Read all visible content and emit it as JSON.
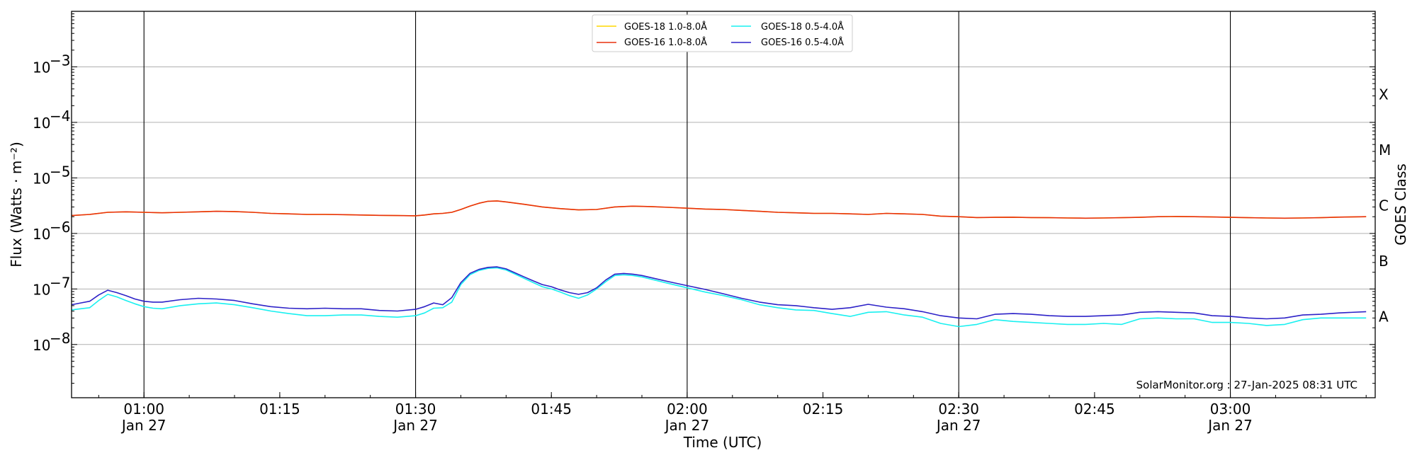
{
  "chart_data": {
    "type": "line",
    "xlabel": "Time (UTC)",
    "ylabel": "Flux (Watts · m⁻²)",
    "right_label": "GOES Class",
    "scale_y": "log",
    "ylim": [
      1.1e-09,
      0.01
    ],
    "x_range_minutes": [
      0.0,
      144.0
    ],
    "x_ticks": [
      {
        "value": 8,
        "time": "01:00",
        "date": "Jan 27"
      },
      {
        "value": 23,
        "time": "01:15",
        "date": ""
      },
      {
        "value": 38,
        "time": "01:30",
        "date": "Jan 27"
      },
      {
        "value": 53,
        "time": "01:45",
        "date": ""
      },
      {
        "value": 68,
        "time": "02:00",
        "date": "Jan 27"
      },
      {
        "value": 83,
        "time": "02:15",
        "date": ""
      },
      {
        "value": 98,
        "time": "02:30",
        "date": "Jan 27"
      },
      {
        "value": 113,
        "time": "02:45",
        "date": ""
      },
      {
        "value": 128,
        "time": "03:00",
        "date": "Jan 27"
      }
    ],
    "y_ticks": [
      {
        "value": 1e-08,
        "base": "10",
        "exp": "−8"
      },
      {
        "value": 1e-07,
        "base": "10",
        "exp": "−7"
      },
      {
        "value": 1e-06,
        "base": "10",
        "exp": "−6"
      },
      {
        "value": 1e-05,
        "base": "10",
        "exp": "−5"
      },
      {
        "value": 0.0001,
        "base": "10",
        "exp": "−4"
      },
      {
        "value": 0.001,
        "base": "10",
        "exp": "−3"
      }
    ],
    "goes_classes": [
      {
        "label": "A",
        "value": 3.16e-08
      },
      {
        "label": "B",
        "value": 3.16e-07
      },
      {
        "label": "C",
        "value": 3.16e-06
      },
      {
        "label": "M",
        "value": 3.16e-05
      },
      {
        "label": "X",
        "value": 0.000316
      }
    ],
    "vertical_lines": [
      8,
      38,
      68,
      98,
      128
    ],
    "grid": "horizontal at decades",
    "legend": {
      "position": "top-center",
      "entries": [
        {
          "label": "GOES-18 1.0-8.0Å",
          "color": "#ffd700"
        },
        {
          "label": "GOES-16 1.0-8.0Å",
          "color": "#e8300f"
        },
        {
          "label": "GOES-18 0.5-4.0Å",
          "color": "#19f0f0"
        },
        {
          "label": "GOES-16 0.5-4.0Å",
          "color": "#2d22c8"
        }
      ]
    },
    "series": [
      {
        "name": "GOES-18 1.0-8.0Å",
        "color": "#ffd700",
        "x": [
          0,
          2,
          4,
          6,
          8,
          10,
          12,
          14,
          16,
          18,
          20,
          22,
          24,
          26,
          28,
          30,
          32,
          34,
          36,
          38,
          39,
          40,
          41,
          42,
          43,
          44,
          45,
          46,
          47,
          48,
          50,
          52,
          54,
          56,
          58,
          60,
          62,
          64,
          66,
          68,
          70,
          72,
          74,
          76,
          78,
          80,
          82,
          84,
          86,
          88,
          90,
          92,
          94,
          96,
          98,
          100,
          102,
          104,
          106,
          108,
          110,
          112,
          114,
          116,
          118,
          120,
          122,
          124,
          126,
          128,
          130,
          132,
          134,
          136,
          138,
          140,
          143
        ],
        "y": [
          2.1e-06,
          2.2e-06,
          2.4e-06,
          2.45e-06,
          2.4e-06,
          2.35e-06,
          2.4e-06,
          2.45e-06,
          2.5e-06,
          2.48e-06,
          2.4e-06,
          2.3e-06,
          2.25e-06,
          2.2e-06,
          2.2e-06,
          2.18e-06,
          2.15e-06,
          2.12e-06,
          2.1e-06,
          2.08e-06,
          2.15e-06,
          2.25e-06,
          2.3e-06,
          2.4e-06,
          2.7e-06,
          3.1e-06,
          3.5e-06,
          3.8e-06,
          3.85e-06,
          3.7e-06,
          3.35e-06,
          3e-06,
          2.8e-06,
          2.65e-06,
          2.7e-06,
          3e-06,
          3.1e-06,
          3.05e-06,
          2.95e-06,
          2.85e-06,
          2.75e-06,
          2.7e-06,
          2.6e-06,
          2.5e-06,
          2.4e-06,
          2.35e-06,
          2.3e-06,
          2.3e-06,
          2.25e-06,
          2.2e-06,
          2.3e-06,
          2.25e-06,
          2.2e-06,
          2.05e-06,
          2e-06,
          1.93e-06,
          1.95e-06,
          1.96e-06,
          1.93e-06,
          1.92e-06,
          1.9e-06,
          1.88e-06,
          1.9e-06,
          1.92e-06,
          1.95e-06,
          2e-06,
          2.02e-06,
          2e-06,
          1.98e-06,
          1.95e-06,
          1.92e-06,
          1.9e-06,
          1.88e-06,
          1.9e-06,
          1.92e-06,
          1.97e-06,
          2e-06
        ]
      },
      {
        "name": "GOES-16 1.0-8.0Å",
        "color": "#e8300f",
        "x": [
          0,
          2,
          4,
          6,
          8,
          10,
          12,
          14,
          16,
          18,
          20,
          22,
          24,
          26,
          28,
          30,
          32,
          34,
          36,
          38,
          39,
          40,
          41,
          42,
          43,
          44,
          45,
          46,
          47,
          48,
          50,
          52,
          54,
          56,
          58,
          60,
          62,
          64,
          66,
          68,
          70,
          72,
          74,
          76,
          78,
          80,
          82,
          84,
          86,
          88,
          90,
          92,
          94,
          96,
          98,
          100,
          102,
          104,
          106,
          108,
          110,
          112,
          114,
          116,
          118,
          120,
          122,
          124,
          126,
          128,
          130,
          132,
          134,
          136,
          138,
          140,
          143
        ],
        "y": [
          2.1e-06,
          2.2e-06,
          2.4e-06,
          2.45e-06,
          2.4e-06,
          2.35e-06,
          2.4e-06,
          2.45e-06,
          2.5e-06,
          2.48e-06,
          2.4e-06,
          2.3e-06,
          2.25e-06,
          2.2e-06,
          2.2e-06,
          2.18e-06,
          2.15e-06,
          2.12e-06,
          2.1e-06,
          2.08e-06,
          2.15e-06,
          2.25e-06,
          2.3e-06,
          2.4e-06,
          2.7e-06,
          3.1e-06,
          3.5e-06,
          3.8e-06,
          3.85e-06,
          3.7e-06,
          3.35e-06,
          3e-06,
          2.8e-06,
          2.65e-06,
          2.7e-06,
          3e-06,
          3.1e-06,
          3.05e-06,
          2.95e-06,
          2.85e-06,
          2.75e-06,
          2.7e-06,
          2.6e-06,
          2.5e-06,
          2.4e-06,
          2.35e-06,
          2.3e-06,
          2.3e-06,
          2.25e-06,
          2.2e-06,
          2.3e-06,
          2.25e-06,
          2.2e-06,
          2.05e-06,
          2e-06,
          1.93e-06,
          1.95e-06,
          1.96e-06,
          1.93e-06,
          1.92e-06,
          1.9e-06,
          1.88e-06,
          1.9e-06,
          1.92e-06,
          1.95e-06,
          2e-06,
          2.02e-06,
          2e-06,
          1.98e-06,
          1.95e-06,
          1.92e-06,
          1.9e-06,
          1.88e-06,
          1.9e-06,
          1.92e-06,
          1.97e-06,
          2e-06
        ]
      },
      {
        "name": "GOES-18 0.5-4.0Å",
        "color": "#19f0f0",
        "x": [
          0,
          1,
          2,
          3,
          4,
          5,
          6,
          7,
          8,
          9,
          10,
          12,
          14,
          16,
          18,
          20,
          22,
          24,
          26,
          28,
          30,
          32,
          34,
          36,
          38,
          39,
          40,
          41,
          42,
          43,
          44,
          45,
          46,
          47,
          48,
          49,
          50,
          51,
          52,
          53,
          54,
          55,
          56,
          57,
          58,
          59,
          60,
          61,
          62,
          63,
          64,
          66,
          68,
          70,
          72,
          74,
          76,
          78,
          80,
          82,
          84,
          86,
          88,
          90,
          92,
          94,
          96,
          98,
          100,
          102,
          104,
          106,
          108,
          110,
          112,
          114,
          116,
          118,
          120,
          122,
          124,
          126,
          128,
          130,
          132,
          134,
          136,
          138,
          140,
          143
        ],
        "y": [
          4.2e-08,
          4.4e-08,
          4.6e-08,
          6.2e-08,
          8e-08,
          7.2e-08,
          6.2e-08,
          5.4e-08,
          4.8e-08,
          4.5e-08,
          4.4e-08,
          5e-08,
          5.4e-08,
          5.6e-08,
          5.2e-08,
          4.6e-08,
          4e-08,
          3.6e-08,
          3.3e-08,
          3.3e-08,
          3.4e-08,
          3.4e-08,
          3.2e-08,
          3.1e-08,
          3.3e-08,
          3.7e-08,
          4.5e-08,
          4.6e-08,
          5.8e-08,
          1.2e-07,
          1.8e-07,
          2.15e-07,
          2.35e-07,
          2.4e-07,
          2.2e-07,
          1.85e-07,
          1.55e-07,
          1.3e-07,
          1.1e-07,
          1e-07,
          8.8e-08,
          7.6e-08,
          6.8e-08,
          7.8e-08,
          1e-07,
          1.35e-07,
          1.75e-07,
          1.8e-07,
          1.75e-07,
          1.65e-07,
          1.5e-07,
          1.25e-07,
          1.05e-07,
          8.8e-08,
          7.6e-08,
          6.4e-08,
          5.2e-08,
          4.6e-08,
          4.2e-08,
          4.1e-08,
          3.6e-08,
          3.2e-08,
          3.8e-08,
          3.9e-08,
          3.4e-08,
          3.1e-08,
          2.4e-08,
          2.1e-08,
          2.3e-08,
          2.8e-08,
          2.6e-08,
          2.5e-08,
          2.4e-08,
          2.3e-08,
          2.3e-08,
          2.4e-08,
          2.3e-08,
          2.9e-08,
          3e-08,
          2.9e-08,
          2.9e-08,
          2.5e-08,
          2.5e-08,
          2.4e-08,
          2.2e-08,
          2.3e-08,
          2.8e-08,
          3e-08,
          3e-08,
          3e-08
        ]
      },
      {
        "name": "GOES-16 0.5-4.0Å",
        "color": "#2d22c8",
        "x": [
          0,
          1,
          2,
          3,
          4,
          5,
          6,
          7,
          8,
          9,
          10,
          12,
          14,
          16,
          18,
          20,
          22,
          24,
          26,
          28,
          30,
          32,
          34,
          36,
          38,
          39,
          40,
          41,
          42,
          43,
          44,
          45,
          46,
          47,
          48,
          49,
          50,
          51,
          52,
          53,
          54,
          55,
          56,
          57,
          58,
          59,
          60,
          61,
          62,
          63,
          64,
          66,
          68,
          70,
          72,
          74,
          76,
          78,
          80,
          82,
          84,
          86,
          88,
          90,
          92,
          94,
          96,
          98,
          100,
          102,
          104,
          106,
          108,
          110,
          112,
          114,
          116,
          118,
          120,
          122,
          124,
          126,
          128,
          130,
          132,
          134,
          136,
          138,
          140,
          143
        ],
        "y": [
          5.2e-08,
          5.6e-08,
          6e-08,
          7.8e-08,
          9.5e-08,
          8.6e-08,
          7.6e-08,
          6.6e-08,
          6e-08,
          5.8e-08,
          5.8e-08,
          6.4e-08,
          6.8e-08,
          6.6e-08,
          6.2e-08,
          5.4e-08,
          4.8e-08,
          4.5e-08,
          4.4e-08,
          4.5e-08,
          4.4e-08,
          4.4e-08,
          4.1e-08,
          4e-08,
          4.3e-08,
          4.8e-08,
          5.6e-08,
          5.2e-08,
          7e-08,
          1.3e-07,
          1.9e-07,
          2.25e-07,
          2.45e-07,
          2.5e-07,
          2.3e-07,
          1.95e-07,
          1.65e-07,
          1.4e-07,
          1.2e-07,
          1.1e-07,
          9.6e-08,
          8.6e-08,
          8e-08,
          8.6e-08,
          1.05e-07,
          1.45e-07,
          1.85e-07,
          1.9e-07,
          1.85e-07,
          1.75e-07,
          1.6e-07,
          1.35e-07,
          1.15e-07,
          9.8e-08,
          8.2e-08,
          6.8e-08,
          5.8e-08,
          5.2e-08,
          5e-08,
          4.6e-08,
          4.3e-08,
          4.6e-08,
          5.3e-08,
          4.7e-08,
          4.4e-08,
          3.9e-08,
          3.3e-08,
          3e-08,
          2.9e-08,
          3.5e-08,
          3.6e-08,
          3.5e-08,
          3.3e-08,
          3.2e-08,
          3.2e-08,
          3.3e-08,
          3.4e-08,
          3.8e-08,
          3.9e-08,
          3.8e-08,
          3.7e-08,
          3.3e-08,
          3.2e-08,
          3e-08,
          2.9e-08,
          3e-08,
          3.4e-08,
          3.5e-08,
          3.7e-08,
          3.9e-08
        ]
      }
    ],
    "annotation": "SolarMonitor.org : 27-Jan-2025 08:31 UTC"
  }
}
